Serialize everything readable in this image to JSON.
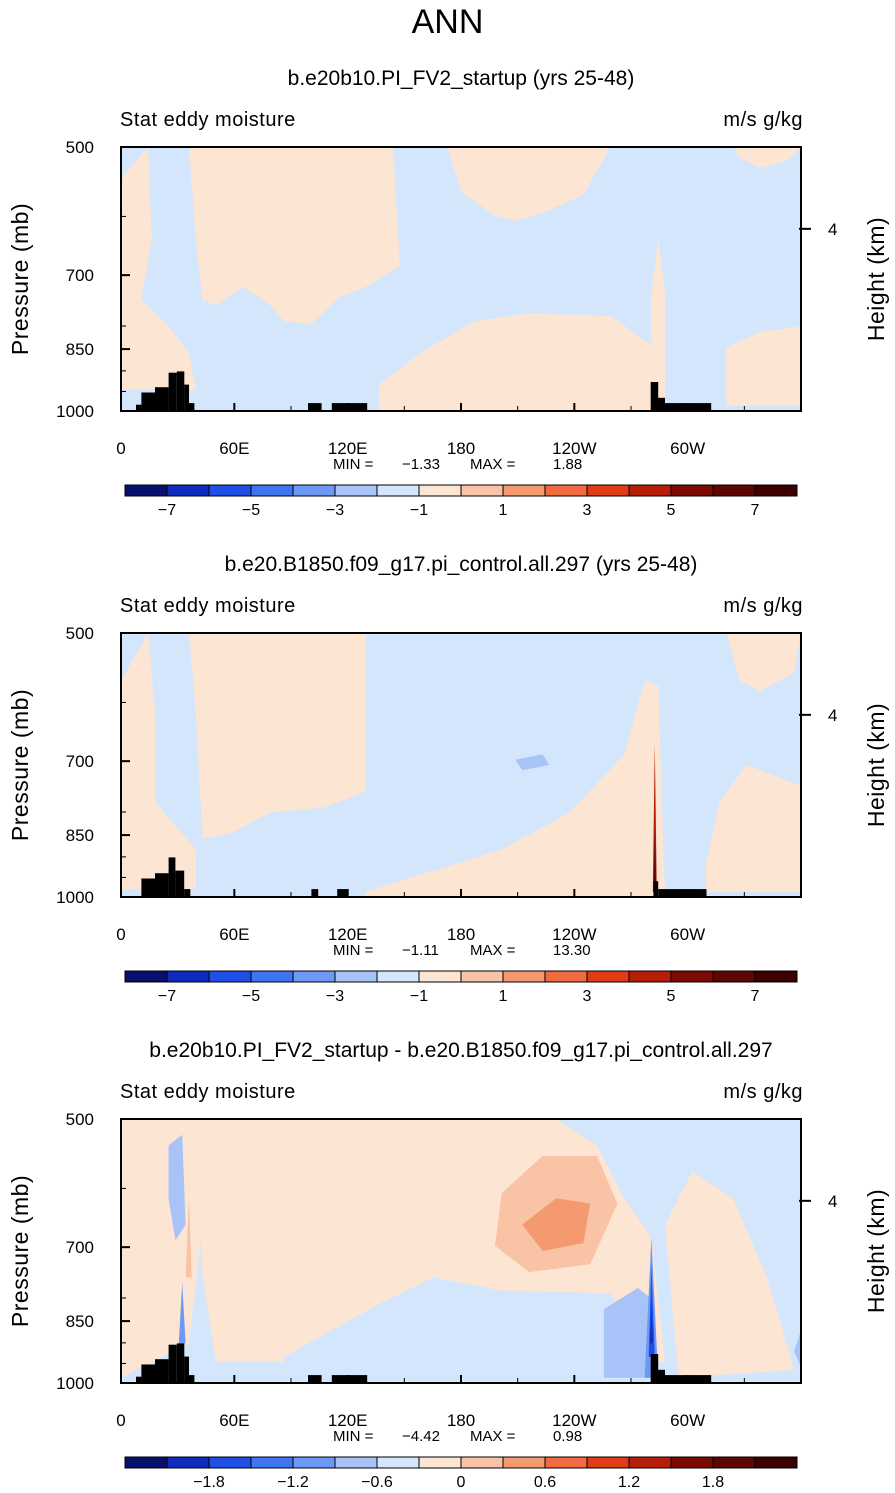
{
  "page_title": "ANN",
  "colors": {
    "box_outline": "#000000",
    "topography": "#000000",
    "palette": [
      "#08106e",
      "#0f2bbf",
      "#1f4fe6",
      "#3f74f2",
      "#6e98f5",
      "#a8c3f7",
      "#d4e6fb",
      "#fde5d3",
      "#f9c3a5",
      "#f59a70",
      "#f26a40",
      "#e13c18",
      "#b71e08",
      "#7a0a02"
    ]
  },
  "panels": [
    {
      "id": "top",
      "title": "b.e20b10.PI_FV2_startup (yrs 25-48)",
      "left_label": "Stat eddy moisture",
      "right_label": "m/s g/kg",
      "y_label": "Pressure (mb)",
      "y2_label": "Height (km)",
      "y_ticks": [
        "500",
        "700",
        "850",
        "1000"
      ],
      "y2_ticks": [
        "4"
      ],
      "x_ticks": [
        "0",
        "60E",
        "120E",
        "180",
        "120W",
        "60W"
      ],
      "min_label": "MIN =",
      "min_value": "-1.33",
      "max_label": "MAX =",
      "max_value": "1.88",
      "colorbar_ticks": [
        "−7",
        "−5",
        "−3",
        "−1",
        "1",
        "3",
        "5",
        "7"
      ]
    },
    {
      "id": "middle",
      "title": "b.e20.B1850.f09_g17.pi_control.all.297 (yrs 25-48)",
      "left_label": "Stat eddy moisture",
      "right_label": "m/s g/kg",
      "y_label": "Pressure (mb)",
      "y2_label": "Height (km)",
      "y_ticks": [
        "500",
        "700",
        "850",
        "1000"
      ],
      "y2_ticks": [
        "4"
      ],
      "x_ticks": [
        "0",
        "60E",
        "120E",
        "180",
        "120W",
        "60W"
      ],
      "min_label": "MIN =",
      "min_value": "-1.11",
      "max_label": "MAX =",
      "max_value": "13.30",
      "colorbar_ticks": [
        "−7",
        "−5",
        "−3",
        "−1",
        "1",
        "3",
        "5",
        "7"
      ]
    },
    {
      "id": "bottom",
      "title": "b.e20b10.PI_FV2_startup - b.e20.B1850.f09_g17.pi_control.all.297",
      "left_label": "Stat eddy moisture",
      "right_label": "m/s g/kg",
      "y_label": "Pressure (mb)",
      "y2_label": "Height (km)",
      "y_ticks": [
        "500",
        "700",
        "850",
        "1000"
      ],
      "y2_ticks": [
        "4"
      ],
      "x_ticks": [
        "0",
        "60E",
        "120E",
        "180",
        "120W",
        "60W"
      ],
      "min_label": "MIN =",
      "min_value": "-4.42",
      "max_label": "MAX =",
      "max_value": "0.98",
      "colorbar_ticks": [
        "−1.8",
        "−1.2",
        "−0.6",
        "0",
        "0.6",
        "1.2",
        "1.8"
      ]
    }
  ],
  "chart_data": [
    {
      "type": "heatmap",
      "title": "b.e20b10.PI_FV2_startup (yrs 25-48)",
      "variable": "Stat eddy moisture",
      "units": "m/s g/kg",
      "xlabel": "",
      "ylabel": "Pressure (mb)",
      "y2label": "Height (km)",
      "x_range": [
        0,
        360
      ],
      "ylim": [
        1000,
        500
      ],
      "y_ticks": [
        500,
        700,
        850,
        1000
      ],
      "min": -1.33,
      "max": 1.88,
      "contour_levels": [
        -7,
        -5,
        -3,
        -1,
        1,
        3,
        5,
        7
      ]
    },
    {
      "type": "heatmap",
      "title": "b.e20.B1850.f09_g17.pi_control.all.297 (yrs 25-48)",
      "variable": "Stat eddy moisture",
      "units": "m/s g/kg",
      "xlabel": "",
      "ylabel": "Pressure (mb)",
      "y2label": "Height (km)",
      "x_range": [
        0,
        360
      ],
      "ylim": [
        1000,
        500
      ],
      "y_ticks": [
        500,
        700,
        850,
        1000
      ],
      "min": -1.11,
      "max": 13.3,
      "contour_levels": [
        -7,
        -5,
        -3,
        -1,
        1,
        3,
        5,
        7
      ]
    },
    {
      "type": "heatmap",
      "title": "b.e20b10.PI_FV2_startup - b.e20.B1850.f09_g17.pi_control.all.297",
      "variable": "Stat eddy moisture",
      "units": "m/s g/kg",
      "xlabel": "",
      "ylabel": "Pressure (mb)",
      "y2label": "Height (km)",
      "x_range": [
        0,
        360
      ],
      "ylim": [
        1000,
        500
      ],
      "y_ticks": [
        500,
        700,
        850,
        1000
      ],
      "min": -4.42,
      "max": 0.98,
      "contour_levels": [
        -1.8,
        -1.2,
        -0.6,
        0,
        0.6,
        1.2,
        1.8
      ]
    }
  ]
}
